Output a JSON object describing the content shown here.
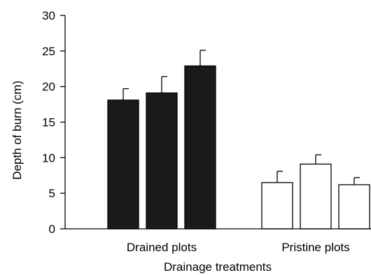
{
  "chart_data": {
    "type": "bar",
    "title": "",
    "xlabel": "Drainage treatments",
    "ylabel": "Depth of burn (cm)",
    "ylim": [
      0,
      30
    ],
    "yticks": [
      0,
      5,
      10,
      15,
      20,
      25,
      30
    ],
    "grid": false,
    "groups": [
      {
        "label": "Drained plots",
        "fill_color": "#1a1a1a",
        "values": [
          18.1,
          19.1,
          22.9
        ],
        "errors": [
          1.6,
          2.3,
          2.2
        ]
      },
      {
        "label": "Pristine plots",
        "fill_color": "#ffffff",
        "values": [
          6.5,
          9.1,
          6.2
        ],
        "errors": [
          1.6,
          1.3,
          1.0
        ]
      }
    ]
  }
}
